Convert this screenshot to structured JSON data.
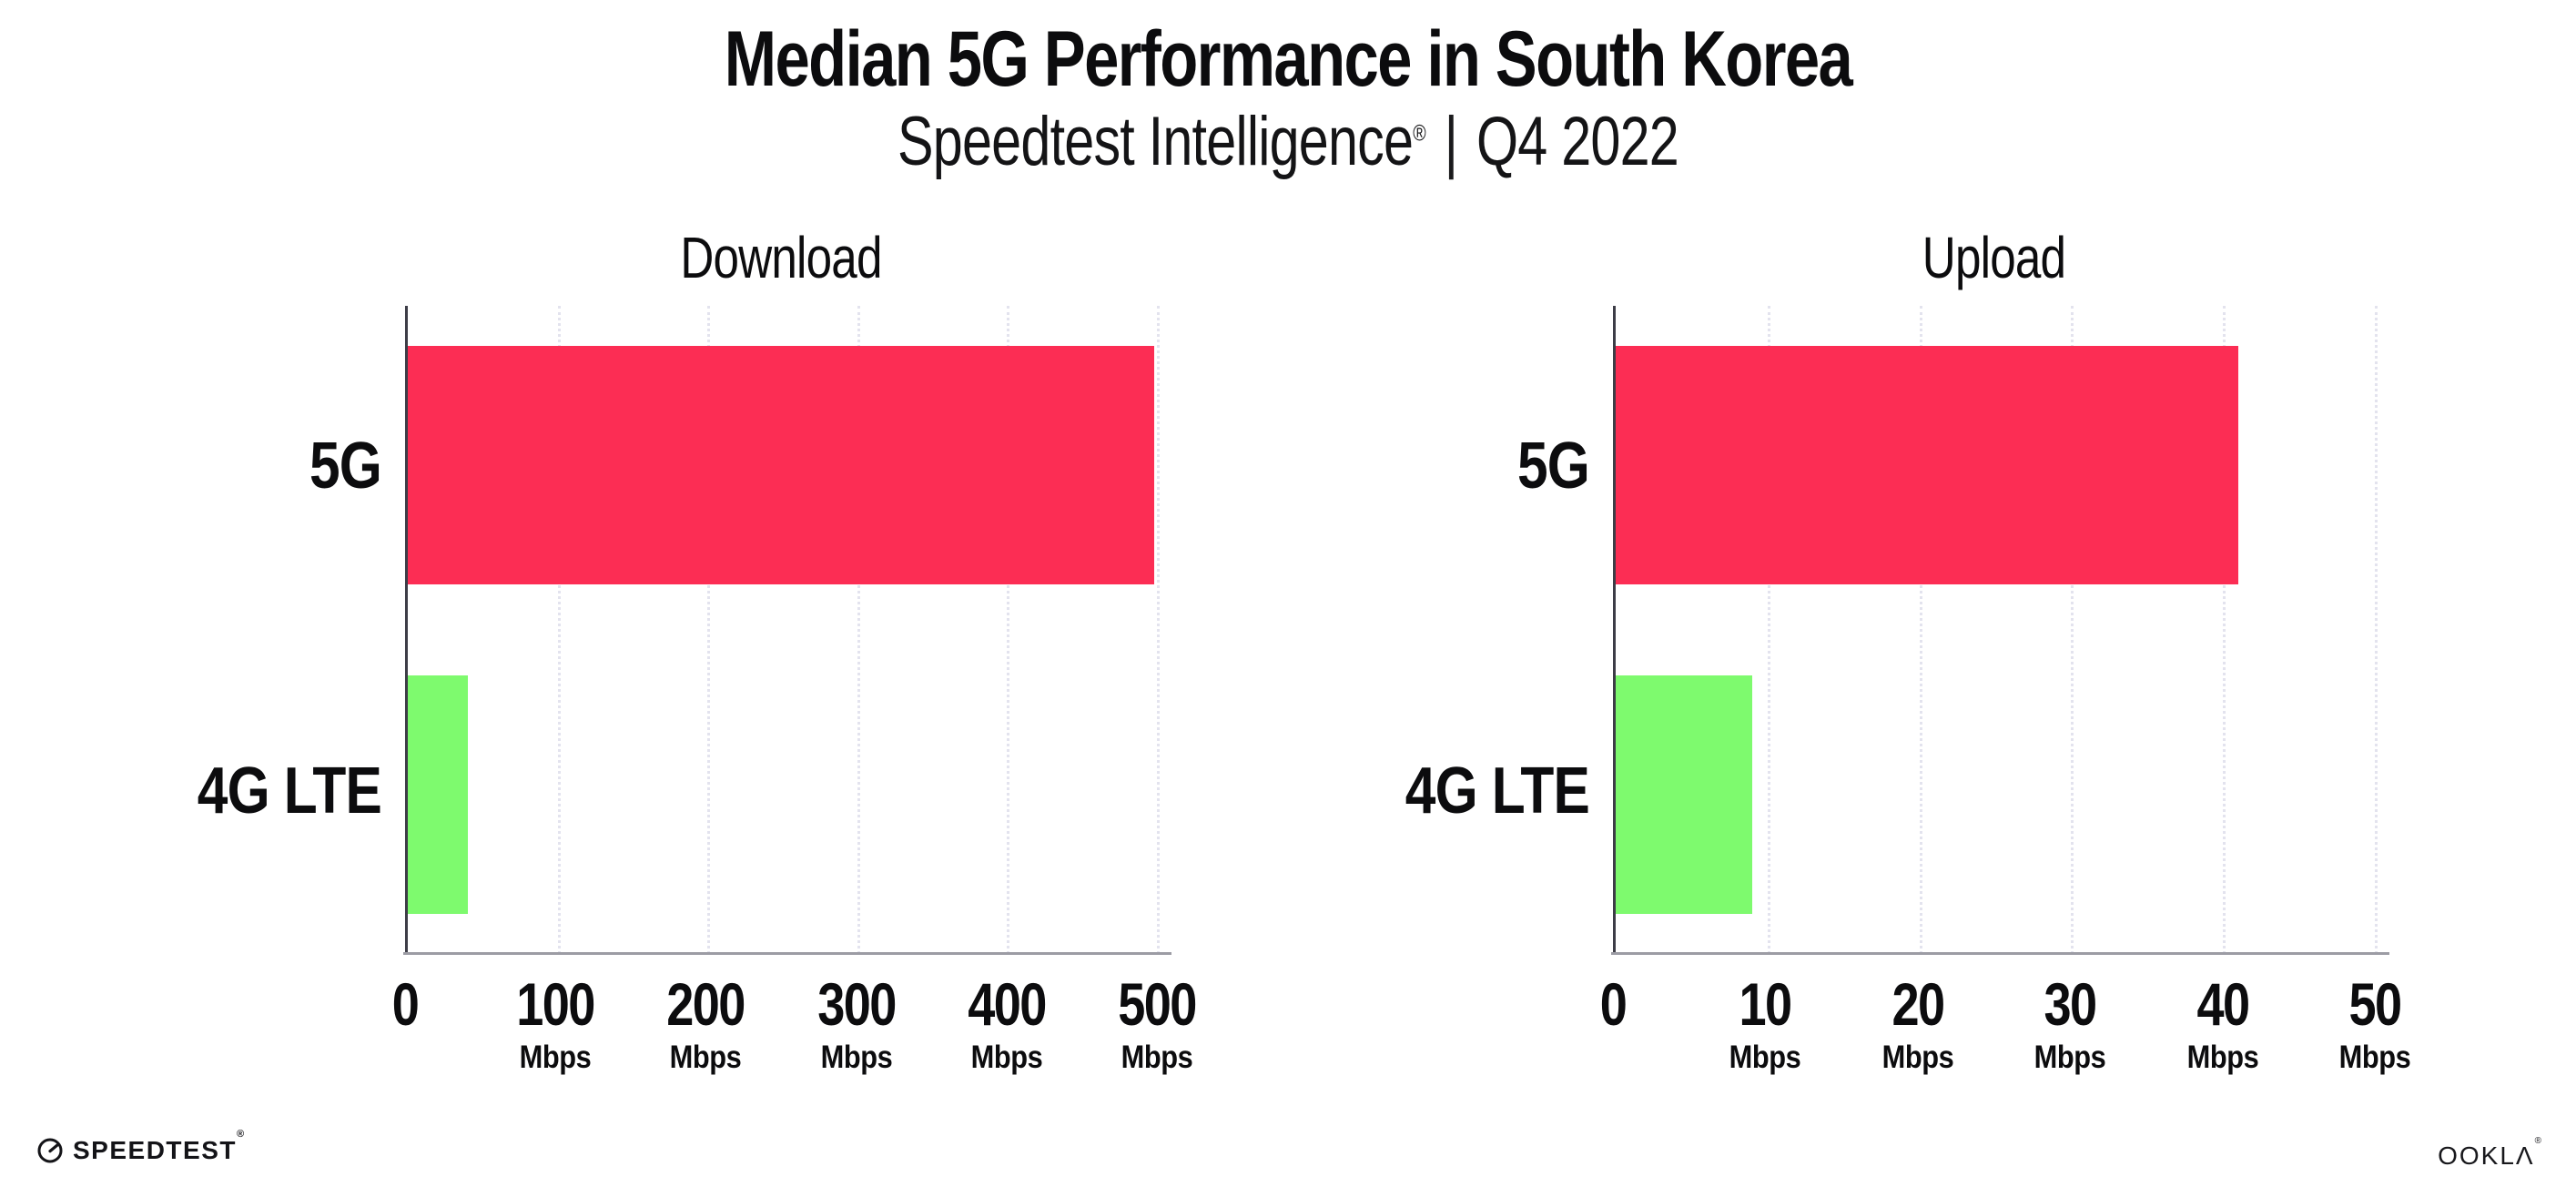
{
  "header": {
    "title": "Median 5G Performance in South Korea",
    "subtitle": {
      "product": "Speedtest Intelligence",
      "registered": "®",
      "separator": "|",
      "period": "Q4 2022"
    }
  },
  "chart_data": [
    {
      "type": "bar",
      "orientation": "horizontal",
      "title": "Download",
      "categories": [
        "5G",
        "4G LTE"
      ],
      "values": [
        498,
        40
      ],
      "value_unit": "Mbps",
      "xlim": [
        0,
        500
      ],
      "xticks": [
        {
          "label": "0",
          "unit": ""
        },
        {
          "label": "100",
          "unit": "Mbps"
        },
        {
          "label": "200",
          "unit": "Mbps"
        },
        {
          "label": "300",
          "unit": "Mbps"
        },
        {
          "label": "400",
          "unit": "Mbps"
        },
        {
          "label": "500",
          "unit": "Mbps"
        }
      ],
      "bar_colors": [
        "#FC2D54",
        "#7EFA6E"
      ],
      "grid": "vertical-dotted",
      "legend": "none"
    },
    {
      "type": "bar",
      "orientation": "horizontal",
      "title": "Upload",
      "categories": [
        "5G",
        "4G LTE"
      ],
      "values": [
        41,
        9
      ],
      "value_unit": "Mbps",
      "xlim": [
        0,
        50
      ],
      "xticks": [
        {
          "label": "0",
          "unit": ""
        },
        {
          "label": "10",
          "unit": "Mbps"
        },
        {
          "label": "20",
          "unit": "Mbps"
        },
        {
          "label": "30",
          "unit": "Mbps"
        },
        {
          "label": "40",
          "unit": "Mbps"
        },
        {
          "label": "50",
          "unit": "Mbps"
        }
      ],
      "bar_colors": [
        "#FC2D54",
        "#7EFA6E"
      ],
      "grid": "vertical-dotted",
      "legend": "none"
    }
  ],
  "footer": {
    "speedtest_wordmark": "SPEEDTEST",
    "speedtest_registered": "®",
    "ookla_wordmark": "OOKLΛ",
    "ookla_registered": "®"
  },
  "colors": {
    "bar_5g": "#FC2D54",
    "bar_4g_lte": "#7EFA6E",
    "gridline": "#e3e3ee",
    "y_axis": "#3d3d47",
    "x_axis": "#9c9ca4",
    "text": "#0c0c0e"
  }
}
